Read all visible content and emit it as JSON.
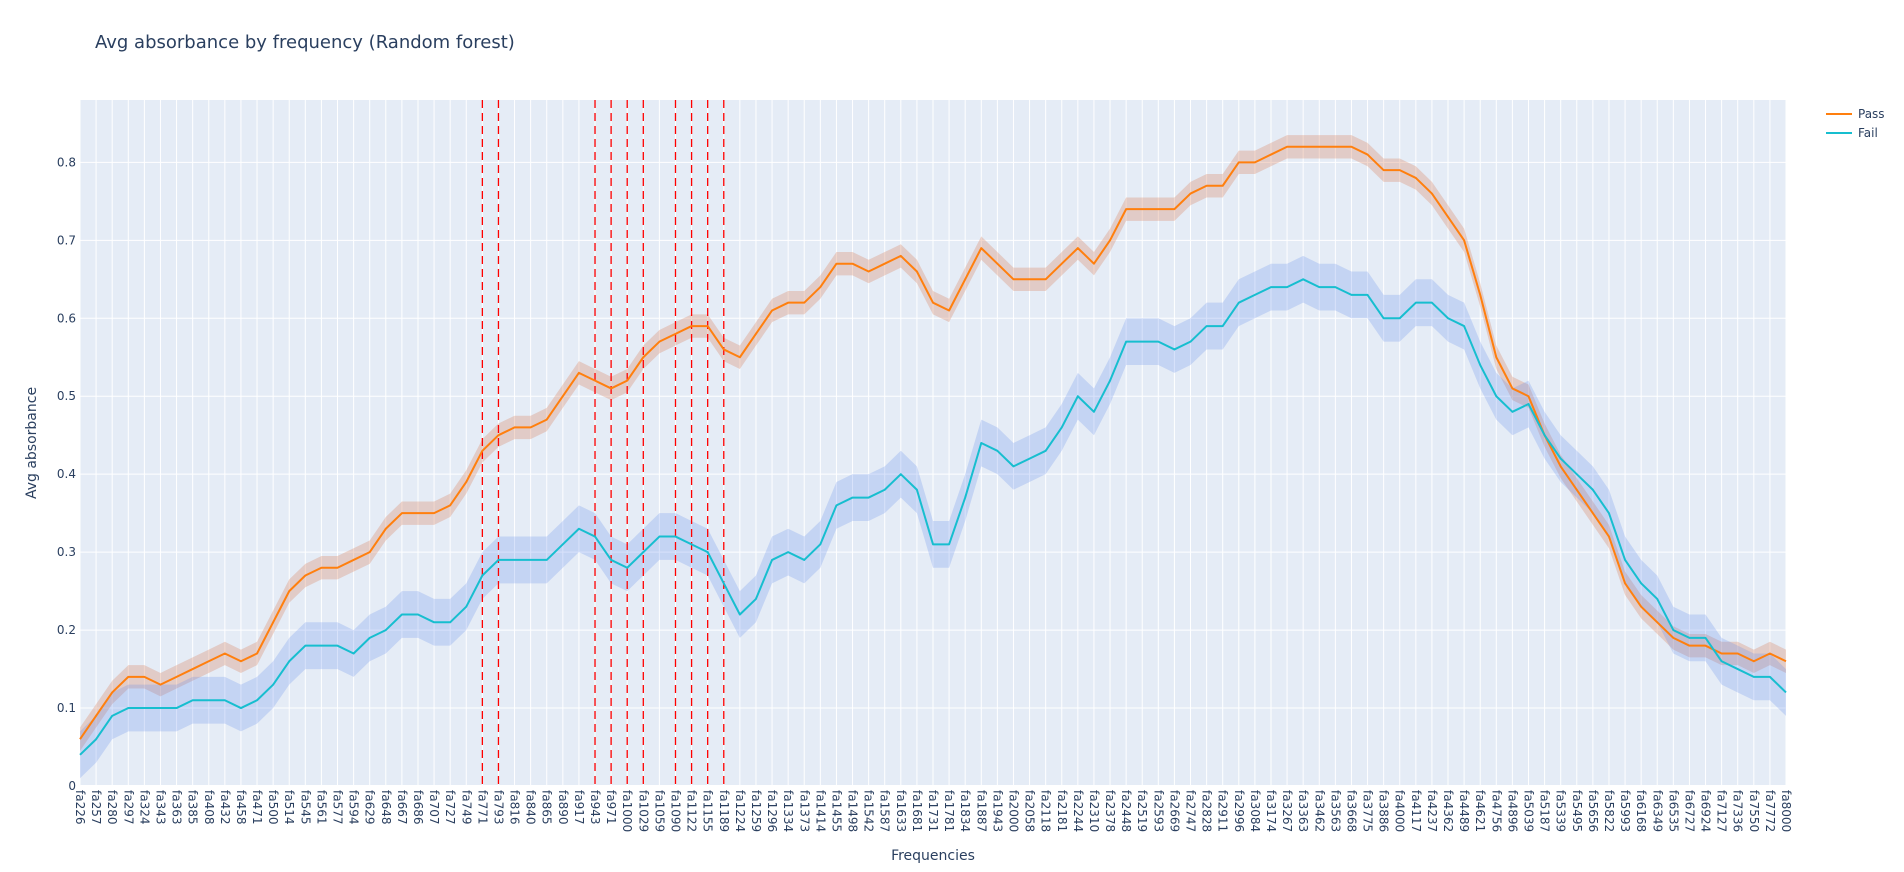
{
  "chart_data": {
    "type": "line",
    "title": "Avg absorbance by frequency (Random forest)",
    "xlabel": "Frequencies",
    "ylabel": "Avg absorbance",
    "ylim": [
      0,
      0.88
    ],
    "yticks": [
      0,
      0.1,
      0.2,
      0.3,
      0.4,
      0.5,
      0.6,
      0.7,
      0.8
    ],
    "ytick_labels": [
      "0",
      "0.1",
      "0.2",
      "0.3",
      "0.4",
      "0.5",
      "0.6",
      "0.7",
      "0.8"
    ],
    "legend_position": "top-right",
    "grid": true,
    "categories": [
      "fa226",
      "fa257",
      "fa280",
      "fa297",
      "fa324",
      "fa343",
      "fa363",
      "fa385",
      "fa408",
      "fa432",
      "fa458",
      "fa471",
      "fa500",
      "fa514",
      "fa545",
      "fa561",
      "fa577",
      "fa594",
      "fa629",
      "fa648",
      "fa667",
      "fa686",
      "fa707",
      "fa727",
      "fa749",
      "fa771",
      "fa793",
      "fa816",
      "fa840",
      "fa865",
      "fa890",
      "fa917",
      "fa943",
      "fa971",
      "fa1000",
      "fa1029",
      "fa1059",
      "fa1090",
      "fa1122",
      "fa1155",
      "fa1189",
      "fa1224",
      "fa1259",
      "fa1296",
      "fa1334",
      "fa1373",
      "fa1414",
      "fa1455",
      "fa1498",
      "fa1542",
      "fa1587",
      "fa1633",
      "fa1681",
      "fa1731",
      "fa1781",
      "fa1834",
      "fa1887",
      "fa1943",
      "fa2000",
      "fa2058",
      "fa2118",
      "fa2181",
      "fa2244",
      "fa2310",
      "fa2378",
      "fa2448",
      "fa2519",
      "fa2593",
      "fa2669",
      "fa2747",
      "fa2828",
      "fa2911",
      "fa2996",
      "fa3084",
      "fa3174",
      "fa3267",
      "fa3363",
      "fa3462",
      "fa3563",
      "fa3668",
      "fa3775",
      "fa3886",
      "fa4000",
      "fa4117",
      "fa4237",
      "fa4362",
      "fa4489",
      "fa4621",
      "fa4756",
      "fa4896",
      "fa5039",
      "fa5187",
      "fa5339",
      "fa5495",
      "fa5656",
      "fa5822",
      "fa5993",
      "fa6168",
      "fa6349",
      "fa6535",
      "fa6727",
      "fa6924",
      "fa7127",
      "fa7336",
      "fa7550",
      "fa7772",
      "fa8000"
    ],
    "series": [
      {
        "name": "Pass",
        "color": "#ff7f0e",
        "band_color": "rgba(214,125,90,0.30)",
        "band_halfwidth": 0.015,
        "values": [
          0.06,
          0.09,
          0.12,
          0.14,
          0.14,
          0.13,
          0.14,
          0.15,
          0.16,
          0.17,
          0.16,
          0.17,
          0.21,
          0.25,
          0.27,
          0.28,
          0.28,
          0.29,
          0.3,
          0.33,
          0.35,
          0.35,
          0.35,
          0.36,
          0.39,
          0.43,
          0.45,
          0.46,
          0.46,
          0.47,
          0.5,
          0.53,
          0.52,
          0.51,
          0.52,
          0.55,
          0.57,
          0.58,
          0.59,
          0.59,
          0.56,
          0.55,
          0.58,
          0.61,
          0.62,
          0.62,
          0.64,
          0.67,
          0.67,
          0.66,
          0.67,
          0.68,
          0.66,
          0.62,
          0.61,
          0.65,
          0.69,
          0.67,
          0.65,
          0.65,
          0.65,
          0.67,
          0.69,
          0.67,
          0.7,
          0.74,
          0.74,
          0.74,
          0.74,
          0.76,
          0.77,
          0.77,
          0.8,
          0.8,
          0.81,
          0.82,
          0.82,
          0.82,
          0.82,
          0.82,
          0.81,
          0.79,
          0.79,
          0.78,
          0.76,
          0.73,
          0.7,
          0.63,
          0.55,
          0.51,
          0.5,
          0.45,
          0.41,
          0.38,
          0.35,
          0.32,
          0.26,
          0.23,
          0.21,
          0.19,
          0.18,
          0.18,
          0.17,
          0.17,
          0.16,
          0.17,
          0.16
        ]
      },
      {
        "name": "Fail",
        "color": "#17becf",
        "band_color": "rgba(99,140,235,0.25)",
        "band_halfwidth": 0.03,
        "values": [
          0.04,
          0.06,
          0.09,
          0.1,
          0.1,
          0.1,
          0.1,
          0.11,
          0.11,
          0.11,
          0.1,
          0.11,
          0.13,
          0.16,
          0.18,
          0.18,
          0.18,
          0.17,
          0.19,
          0.2,
          0.22,
          0.22,
          0.21,
          0.21,
          0.23,
          0.27,
          0.29,
          0.29,
          0.29,
          0.29,
          0.31,
          0.33,
          0.32,
          0.29,
          0.28,
          0.3,
          0.32,
          0.32,
          0.31,
          0.3,
          0.26,
          0.22,
          0.24,
          0.29,
          0.3,
          0.29,
          0.31,
          0.36,
          0.37,
          0.37,
          0.38,
          0.4,
          0.38,
          0.31,
          0.31,
          0.37,
          0.44,
          0.43,
          0.41,
          0.42,
          0.43,
          0.46,
          0.5,
          0.48,
          0.52,
          0.57,
          0.57,
          0.57,
          0.56,
          0.57,
          0.59,
          0.59,
          0.62,
          0.63,
          0.64,
          0.64,
          0.65,
          0.64,
          0.64,
          0.63,
          0.63,
          0.6,
          0.6,
          0.62,
          0.62,
          0.6,
          0.59,
          0.54,
          0.5,
          0.48,
          0.49,
          0.45,
          0.42,
          0.4,
          0.38,
          0.35,
          0.29,
          0.26,
          0.24,
          0.2,
          0.19,
          0.19,
          0.16,
          0.15,
          0.14,
          0.14,
          0.12
        ]
      }
    ],
    "vlines": {
      "color": "#ff0000",
      "style": "dashed",
      "at": [
        "fa771",
        "fa793",
        "fa943",
        "fa971",
        "fa1000",
        "fa1029",
        "fa1090",
        "fa1122",
        "fa1155",
        "fa1189"
      ]
    }
  }
}
